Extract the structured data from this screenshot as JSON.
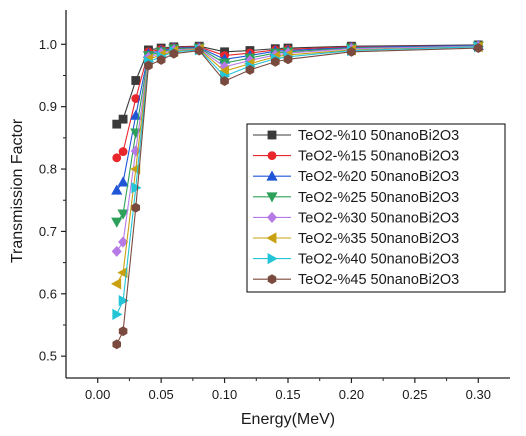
{
  "chart_data": {
    "type": "line",
    "title": "",
    "xlabel": "Energy(MeV)",
    "ylabel": "Transmission Factor",
    "xlim": [
      -0.025,
      0.325
    ],
    "ylim": [
      0.465,
      1.055
    ],
    "x_ticks": [
      "0.00",
      "0.05",
      "0.10",
      "0.15",
      "0.20",
      "0.25",
      "0.30"
    ],
    "y_ticks": [
      "0.5",
      "0.6",
      "0.7",
      "0.8",
      "0.9",
      "1.0"
    ],
    "grid": false,
    "legend_position": "right",
    "x": [
      0.015,
      0.02,
      0.03,
      0.04,
      0.05,
      0.06,
      0.08,
      0.1,
      0.12,
      0.14,
      0.15,
      0.2,
      0.3
    ],
    "series": [
      {
        "name": "TeO2-%10 50nanoBi2O3",
        "color": "#3a3a3a",
        "marker": "square",
        "values": [
          0.872,
          0.88,
          0.942,
          0.991,
          0.994,
          0.996,
          0.997,
          0.988,
          0.99,
          0.993,
          0.994,
          0.997,
          0.999
        ]
      },
      {
        "name": "TeO2-%15 50nanoBi2O3",
        "color": "#e8262b",
        "marker": "circle",
        "values": [
          0.818,
          0.828,
          0.913,
          0.988,
          0.992,
          0.995,
          0.996,
          0.982,
          0.986,
          0.991,
          0.992,
          0.996,
          0.998
        ]
      },
      {
        "name": "TeO2-%20 50nanoBi2O3",
        "color": "#1f55d6",
        "marker": "triangle-up",
        "values": [
          0.766,
          0.779,
          0.886,
          0.985,
          0.99,
          0.994,
          0.995,
          0.976,
          0.982,
          0.989,
          0.99,
          0.995,
          0.998
        ]
      },
      {
        "name": "TeO2-%25 50nanoBi2O3",
        "color": "#2da05a",
        "marker": "triangle-down",
        "values": [
          0.715,
          0.728,
          0.858,
          0.982,
          0.988,
          0.993,
          0.994,
          0.97,
          0.978,
          0.986,
          0.988,
          0.994,
          0.997
        ]
      },
      {
        "name": "TeO2-%30 50nanoBi2O3",
        "color": "#b67ae6",
        "marker": "diamond",
        "values": [
          0.668,
          0.683,
          0.829,
          0.979,
          0.986,
          0.991,
          0.993,
          0.964,
          0.974,
          0.983,
          0.986,
          0.993,
          0.997
        ]
      },
      {
        "name": "TeO2-%35 50nanoBi2O3",
        "color": "#c9a010",
        "marker": "triangle-left",
        "values": [
          0.616,
          0.634,
          0.8,
          0.976,
          0.983,
          0.989,
          0.992,
          0.957,
          0.969,
          0.98,
          0.983,
          0.991,
          0.996
        ]
      },
      {
        "name": "TeO2-%40 50nanoBi2O3",
        "color": "#22c4d6",
        "marker": "triangle-right",
        "values": [
          0.567,
          0.589,
          0.77,
          0.972,
          0.98,
          0.988,
          0.991,
          0.949,
          0.965,
          0.977,
          0.98,
          0.99,
          0.996
        ]
      },
      {
        "name": "TeO2-%45 50nanoBi2O3",
        "color": "#7a4a3e",
        "marker": "hexagon",
        "values": [
          0.519,
          0.54,
          0.738,
          0.966,
          0.975,
          0.985,
          0.99,
          0.941,
          0.959,
          0.972,
          0.976,
          0.988,
          0.994
        ]
      }
    ]
  }
}
